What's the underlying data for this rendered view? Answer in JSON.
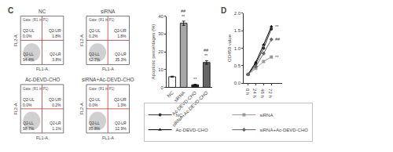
{
  "panel_labels": [
    "C",
    "D"
  ],
  "flow_plots": [
    {
      "title": "NC",
      "gate": "Gate: (R1 in P1)",
      "x_label": "FL1-A",
      "y_label": "FL2-A",
      "quadrants": [
        {
          "name": "Q2-UL",
          "label": "0.0%"
        },
        {
          "name": "Q2-UR",
          "label": "1.8%"
        },
        {
          "name": "Q2-LL",
          "label": "94.4%"
        },
        {
          "name": "Q2-LR",
          "label": "3.8%"
        }
      ]
    },
    {
      "title": "siRNA",
      "gate": "Gate: (R1 in P1)",
      "x_label": "FL1-A",
      "y_label": "FL2-A",
      "quadrants": [
        {
          "name": "Q2-UL",
          "label": "0.2%"
        },
        {
          "name": "Q2-UR",
          "label": "1.8%"
        },
        {
          "name": "Q2-LL",
          "label": "62.7%"
        },
        {
          "name": "Q2-LR",
          "label": "35.3%"
        }
      ]
    },
    {
      "title": "Ac-DEVD-CHO",
      "gate": "Gate: (R1 in P1)",
      "x_label": "FL1-A",
      "y_label": "FL2-A",
      "quadrants": [
        {
          "name": "Q2-UL",
          "label": "0.0%"
        },
        {
          "name": "Q2-UR",
          "label": "0.2%"
        },
        {
          "name": "Q2-LL",
          "label": "98.7%"
        },
        {
          "name": "Q2-LR",
          "label": "1.1%"
        }
      ]
    },
    {
      "title": "siRNA+Ac-DEVD-CHO",
      "gate": "Gate: (R1 in P1)",
      "x_label": "FL1-A",
      "y_label": "FL2-A",
      "quadrants": [
        {
          "name": "Q2-UL",
          "label": "0.0%"
        },
        {
          "name": "Q2-UR",
          "label": "1.3%"
        },
        {
          "name": "Q2-LL",
          "label": "85.8%"
        },
        {
          "name": "Q2-LR",
          "label": "12.9%"
        }
      ]
    }
  ],
  "chart_data": [
    {
      "type": "bar",
      "y_label": "Apoptotic percentages (%)",
      "categories": [
        "NC",
        "siRNA",
        "Ac-DEVD-CHO",
        "siRNA+Ac-DEVD-CHO"
      ],
      "values": [
        6,
        36,
        1.5,
        14
      ],
      "errors": [
        0.3,
        1.2,
        0.3,
        1.0
      ],
      "colors": [
        "#ffffff",
        "#a6a6a6",
        "#262626",
        "#666666"
      ],
      "ylim": [
        0,
        40
      ],
      "yticks": [
        0,
        10,
        20,
        30,
        40
      ],
      "grid": false,
      "annotations": [
        {
          "category": "siRNA",
          "text": [
            "##",
            "**"
          ]
        },
        {
          "category": "Ac-DEVD-CHO",
          "text": [
            "**"
          ]
        },
        {
          "category": "siRNA+Ac-DEVD-CHO",
          "text": [
            "##",
            "**"
          ]
        }
      ]
    },
    {
      "type": "line",
      "y_label": "OD450 value",
      "categories": [
        "0 h",
        "24 h",
        "48 h",
        "72 h"
      ],
      "series": [
        {
          "name": "NC",
          "color": "#333333",
          "marker": "circle",
          "values": [
            0.25,
            0.55,
            1.0,
            1.55
          ]
        },
        {
          "name": "siRNA",
          "color": "#999999",
          "marker": "square",
          "values": [
            0.25,
            0.42,
            0.62,
            0.75
          ]
        },
        {
          "name": "Ac-DEVD-CHO",
          "color": "#000000",
          "marker": "triangle-up",
          "values": [
            0.25,
            0.6,
            1.1,
            1.62
          ]
        },
        {
          "name": "siRNA+Ac-DEVD-CHO",
          "color": "#666666",
          "marker": "diamond",
          "values": [
            0.25,
            0.48,
            0.85,
            1.25
          ]
        }
      ],
      "ylim": [
        0,
        2.0
      ],
      "yticks": [
        {
          "value": 0,
          "label": "0.0"
        },
        {
          "value": 0.5,
          "label": "0.5"
        },
        {
          "value": 1.0,
          "label": "1.0"
        },
        {
          "value": 1.5,
          "label": "1.5"
        },
        {
          "value": 2.0,
          "label": "2.0"
        }
      ],
      "grid": false,
      "legend": "bottom",
      "annotations": [
        {
          "series": "Ac-DEVD-CHO",
          "text": "**"
        },
        {
          "series": "siRNA+Ac-DEVD-CHO",
          "text": "##"
        },
        {
          "series": "siRNA",
          "text": "**"
        }
      ]
    }
  ]
}
